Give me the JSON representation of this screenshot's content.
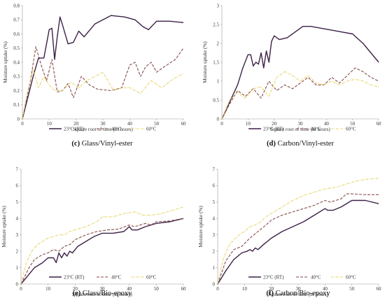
{
  "colors": {
    "rt": "#3c2147",
    "c40": "#8a4a4a",
    "c60": "#e3cf55"
  },
  "chart_data": [
    {
      "type": "line",
      "caption_letter": "(c)",
      "caption_text": "Glass/Vinyl-ester",
      "xlabel": "Square root of time (in hours)",
      "ylabel": "Moisture uptake (%)",
      "xlim": [
        0,
        60
      ],
      "ylim": [
        0,
        0.8
      ],
      "xticks": [
        "0",
        "10",
        "20",
        "30",
        "40",
        "50",
        "60"
      ],
      "yticks": [
        "0",
        "0.1",
        "0.2",
        "0.3",
        "0.4",
        "0.5",
        "0.6",
        "0.7",
        "0.8"
      ],
      "series": [
        {
          "name": "23°C (RT)",
          "style": "solid",
          "color_key": "rt",
          "x": [
            0,
            2,
            4,
            6,
            8,
            10,
            11,
            12,
            13,
            14,
            15,
            17,
            19,
            21,
            23,
            27,
            33,
            38,
            42,
            45,
            47,
            50,
            55,
            60
          ],
          "y": [
            0,
            0.15,
            0.3,
            0.43,
            0.43,
            0.63,
            0.64,
            0.42,
            0.58,
            0.72,
            0.66,
            0.53,
            0.54,
            0.62,
            0.58,
            0.67,
            0.73,
            0.72,
            0.7,
            0.65,
            0.63,
            0.69,
            0.69,
            0.68
          ]
        },
        {
          "name": "40°C",
          "style": "dashed",
          "color_key": "c40",
          "x": [
            0,
            3,
            5,
            7,
            9,
            11,
            13,
            15,
            17,
            19,
            22,
            25,
            28,
            33,
            37,
            40,
            42,
            44,
            46,
            48,
            50,
            53,
            57,
            60
          ],
          "y": [
            0,
            0.27,
            0.51,
            0.38,
            0.27,
            0.42,
            0.19,
            0.2,
            0.25,
            0.15,
            0.3,
            0.24,
            0.21,
            0.2,
            0.22,
            0.38,
            0.4,
            0.3,
            0.37,
            0.4,
            0.33,
            0.37,
            0.42,
            0.5
          ]
        },
        {
          "name": "60°C",
          "style": "dashdot",
          "color_key": "c60",
          "x": [
            0,
            2,
            4,
            6,
            8,
            10,
            12,
            15,
            18,
            21,
            24,
            27,
            30,
            34,
            37,
            40,
            44,
            48,
            52,
            56,
            60
          ],
          "y": [
            0,
            0.2,
            0.35,
            0.22,
            0.3,
            0.24,
            0.2,
            0.2,
            0.26,
            0.22,
            0.27,
            0.3,
            0.33,
            0.2,
            0.22,
            0.22,
            0.18,
            0.27,
            0.22,
            0.28,
            0.32
          ]
        }
      ]
    },
    {
      "type": "line",
      "caption_letter": "(d)",
      "caption_text": "Carbon/Vinyl-ester",
      "xlabel": "Square root of time (in hours)",
      "ylabel": "Moisture uptake (%)",
      "xlim": [
        0,
        60
      ],
      "ylim": [
        0,
        3
      ],
      "xticks": [
        "0",
        "10",
        "20",
        "30",
        "40",
        "50",
        "60"
      ],
      "yticks": [
        "0",
        "0.5",
        "1",
        "1.5",
        "2",
        "2.5",
        "3"
      ],
      "series": [
        {
          "name": "23°C (RT)",
          "style": "solid",
          "color_key": "rt",
          "x": [
            0,
            3,
            6,
            8,
            10,
            11,
            12,
            13,
            14,
            15,
            16,
            17,
            18,
            19,
            20,
            22,
            25,
            28,
            31,
            34,
            38,
            42,
            46,
            50,
            54,
            57,
            60
          ],
          "y": [
            0,
            0.45,
            0.9,
            1.35,
            1.7,
            1.7,
            1.4,
            1.5,
            1.45,
            1.75,
            1.35,
            1.8,
            1.5,
            2.05,
            2.2,
            2.1,
            2.15,
            2.3,
            2.45,
            2.45,
            2.4,
            2.35,
            2.3,
            2.25,
            2.0,
            1.75,
            1.5
          ]
        },
        {
          "name": "40°C",
          "style": "dashed",
          "color_key": "c40",
          "x": [
            0,
            3,
            6,
            9,
            12,
            15,
            18,
            21,
            24,
            27,
            30,
            33,
            36,
            39,
            42,
            45,
            48,
            51,
            54,
            57,
            60
          ],
          "y": [
            0,
            0.4,
            0.75,
            0.6,
            0.8,
            0.55,
            1.0,
            0.75,
            0.9,
            0.8,
            0.95,
            1.1,
            0.9,
            0.9,
            1.1,
            0.95,
            1.15,
            1.35,
            1.25,
            1.1,
            1.0
          ]
        },
        {
          "name": "60°C",
          "style": "dashdot",
          "color_key": "c60",
          "x": [
            0,
            3,
            6,
            9,
            12,
            15,
            18,
            21,
            24,
            27,
            30,
            33,
            36,
            39,
            42,
            45,
            48,
            51,
            54,
            57,
            60
          ],
          "y": [
            0,
            0.5,
            0.7,
            0.55,
            0.8,
            0.85,
            0.6,
            1.1,
            1.25,
            1.15,
            1.0,
            1.15,
            0.95,
            0.9,
            1.0,
            0.9,
            1.0,
            1.05,
            1.0,
            0.9,
            0.85
          ]
        }
      ]
    },
    {
      "type": "line",
      "caption_letter": "(e)",
      "caption_text": "Glass/Bio-epoxy",
      "xlabel": "Square root of time (in hours)",
      "ylabel": "Moisture uptake (%)",
      "xlim": [
        0,
        60
      ],
      "ylim": [
        0,
        7
      ],
      "xticks": [
        "0",
        "10",
        "20",
        "30",
        "40",
        "50",
        "60"
      ],
      "yticks": [
        "0",
        "1",
        "2",
        "3",
        "4",
        "5",
        "6",
        "7"
      ],
      "series": [
        {
          "name": "23°C (RT)",
          "style": "solid",
          "color_key": "rt",
          "x": [
            0,
            3,
            5,
            8,
            10,
            12,
            13,
            14,
            15,
            16,
            17,
            18,
            19,
            21,
            24,
            27,
            30,
            34,
            38,
            40,
            41,
            43,
            46,
            50,
            55,
            60
          ],
          "y": [
            0,
            0.6,
            1.0,
            1.3,
            1.6,
            1.6,
            1.3,
            1.9,
            1.6,
            1.9,
            1.7,
            2.0,
            1.9,
            2.3,
            2.6,
            2.9,
            3.1,
            3.1,
            3.2,
            3.5,
            3.3,
            3.3,
            3.5,
            3.7,
            3.8,
            4.0
          ]
        },
        {
          "name": "40°C",
          "style": "dashed",
          "color_key": "c40",
          "x": [
            0,
            3,
            5,
            8,
            10,
            12,
            14,
            16,
            18,
            20,
            24,
            28,
            32,
            36,
            40,
            42,
            44,
            46,
            48,
            50,
            55,
            60
          ],
          "y": [
            0,
            1.0,
            1.5,
            1.8,
            1.9,
            2.1,
            2.0,
            2.3,
            2.4,
            2.7,
            3.0,
            3.2,
            3.3,
            3.35,
            3.6,
            3.5,
            3.6,
            3.7,
            3.6,
            3.8,
            3.85,
            4.0
          ]
        },
        {
          "name": "60°C",
          "style": "dashdot",
          "color_key": "c60",
          "x": [
            0,
            2,
            4,
            6,
            8,
            10,
            12,
            14,
            16,
            18,
            20,
            24,
            28,
            30,
            34,
            38,
            42,
            45,
            48,
            52,
            56,
            60
          ],
          "y": [
            0,
            1.3,
            2.0,
            2.4,
            2.6,
            2.8,
            2.9,
            3.0,
            3.0,
            3.2,
            3.3,
            3.5,
            3.8,
            4.1,
            4.1,
            4.3,
            4.4,
            4.2,
            4.2,
            4.3,
            4.5,
            4.7
          ]
        }
      ]
    },
    {
      "type": "line",
      "caption_letter": "(f)",
      "caption_text": "Carbon/Bio-epoxy",
      "xlabel": "Square root of time (in hours)",
      "ylabel": "Moisture uptake (%)",
      "xlim": [
        0,
        60
      ],
      "ylim": [
        0,
        7
      ],
      "xticks": [
        "0",
        "10",
        "20",
        "30",
        "40",
        "50",
        "60"
      ],
      "yticks": [
        "0",
        "1",
        "2",
        "3",
        "4",
        "5",
        "6",
        "7"
      ],
      "series": [
        {
          "name": "23°C (RT)",
          "style": "solid",
          "color_key": "rt",
          "x": [
            0,
            3,
            6,
            9,
            11,
            12,
            13,
            14,
            15,
            17,
            20,
            24,
            28,
            32,
            36,
            40,
            41,
            43,
            46,
            50,
            55,
            60
          ],
          "y": [
            0,
            0.8,
            1.5,
            1.9,
            2.0,
            2.1,
            2.0,
            2.2,
            2.1,
            2.4,
            2.8,
            3.2,
            3.5,
            3.8,
            4.2,
            4.6,
            4.5,
            4.5,
            4.7,
            5.1,
            5.1,
            4.9
          ]
        },
        {
          "name": "40°C",
          "style": "dashed",
          "color_key": "c40",
          "x": [
            0,
            3,
            6,
            9,
            12,
            15,
            18,
            20,
            24,
            28,
            32,
            36,
            40,
            42,
            44,
            46,
            48,
            50,
            55,
            60
          ],
          "y": [
            0,
            1.4,
            2.1,
            2.3,
            2.8,
            3.2,
            3.6,
            3.9,
            4.2,
            4.4,
            4.6,
            4.8,
            5.1,
            5.0,
            5.1,
            5.2,
            5.5,
            5.5,
            5.45,
            5.45
          ]
        },
        {
          "name": "60°C",
          "style": "dashdot",
          "color_key": "c60",
          "x": [
            0,
            2,
            4,
            6,
            8,
            10,
            12,
            14,
            16,
            18,
            20,
            24,
            28,
            32,
            36,
            40,
            44,
            48,
            52,
            56,
            60
          ],
          "y": [
            0,
            1.5,
            2.3,
            2.7,
            3.0,
            3.2,
            3.5,
            3.6,
            3.8,
            4.1,
            4.3,
            4.7,
            5.1,
            5.4,
            5.6,
            5.8,
            5.9,
            6.1,
            6.3,
            6.4,
            6.45
          ]
        }
      ]
    }
  ]
}
